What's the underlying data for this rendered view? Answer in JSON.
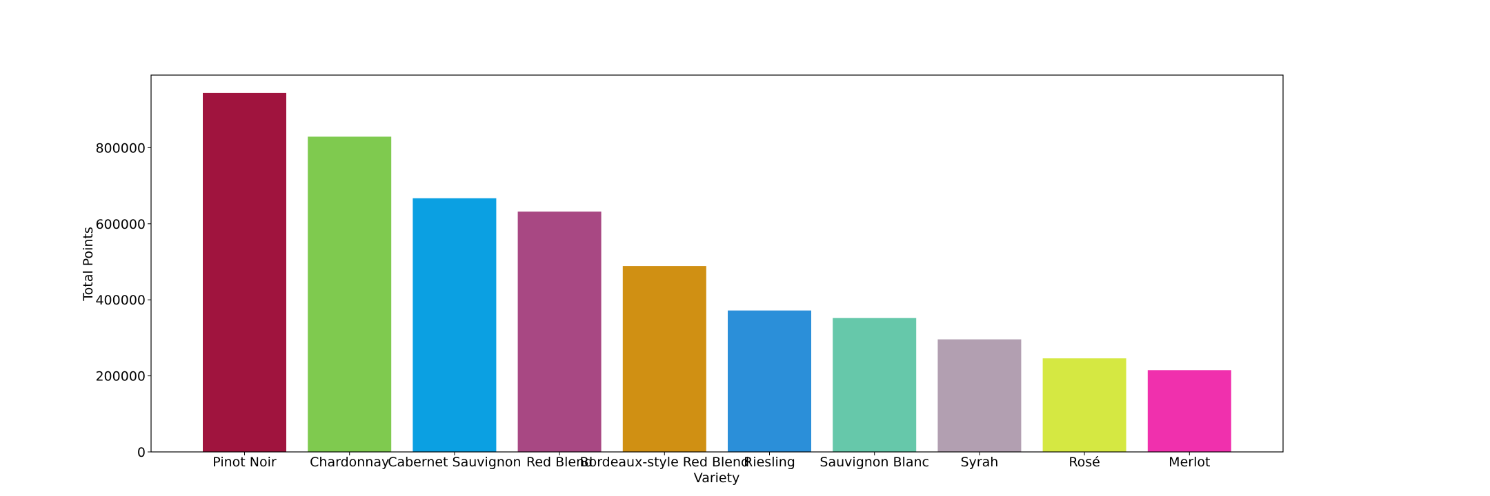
{
  "chart_data": {
    "type": "bar",
    "title": "",
    "xlabel": "Variety",
    "ylabel": "Total Points",
    "categories": [
      "Pinot Noir",
      "Chardonnay",
      "Cabernet Sauvignon",
      "Red Blend",
      "Bordeaux-style Red Blend",
      "Riesling",
      "Sauvignon Blanc",
      "Syrah",
      "Rosé",
      "Merlot"
    ],
    "values": [
      944000,
      829000,
      667000,
      632000,
      489000,
      372000,
      352000,
      296000,
      246000,
      215000
    ],
    "colors": [
      "#a0143e",
      "#7fca4f",
      "#0ba0e2",
      "#a84883",
      "#d09013",
      "#2b8fd9",
      "#66c8aa",
      "#b29fb1",
      "#d5e842",
      "#f030ad"
    ],
    "yticks": [
      0,
      200000,
      400000,
      600000,
      800000
    ],
    "ylim": [
      0,
      991000
    ],
    "grid": false,
    "legend": "none"
  }
}
